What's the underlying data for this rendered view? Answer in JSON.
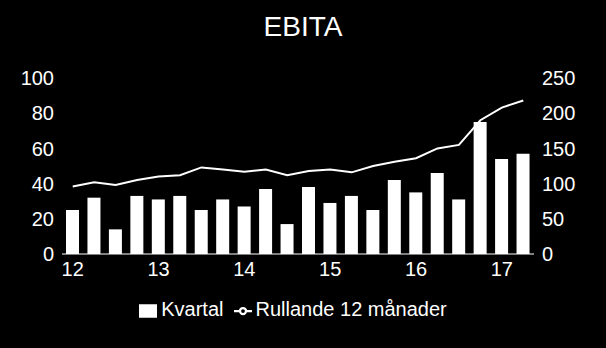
{
  "chart_data": {
    "type": "bar",
    "title": "EBITA",
    "categories": [
      "12",
      null,
      null,
      null,
      "13",
      null,
      null,
      null,
      "14",
      null,
      null,
      null,
      "15",
      null,
      null,
      null,
      "16",
      null,
      null,
      null,
      "17",
      null
    ],
    "series": [
      {
        "name": "Kvartal",
        "type": "bar",
        "color": "#ffffff",
        "values": [
          25,
          32,
          14,
          33,
          31,
          33,
          25,
          31,
          27,
          37,
          17,
          38,
          29,
          33,
          25,
          42,
          35,
          46,
          31,
          75,
          54,
          57
        ]
      },
      {
        "name": "Rullande 12 månader",
        "type": "line",
        "color": "#ffffff",
        "axis": "y2",
        "values": [
          96,
          102,
          98,
          105,
          110,
          112,
          123,
          120,
          117,
          120,
          112,
          118,
          120,
          116,
          125,
          131,
          136,
          150,
          155,
          190,
          208,
          218
        ]
      }
    ],
    "ylim": [
      0,
      100
    ],
    "yticks": [
      0,
      20,
      40,
      60,
      80,
      100
    ],
    "y2lim": [
      0,
      250
    ],
    "y2ticks": [
      0,
      50,
      100,
      150,
      200,
      250
    ],
    "legend": "bottom",
    "grid": false
  }
}
